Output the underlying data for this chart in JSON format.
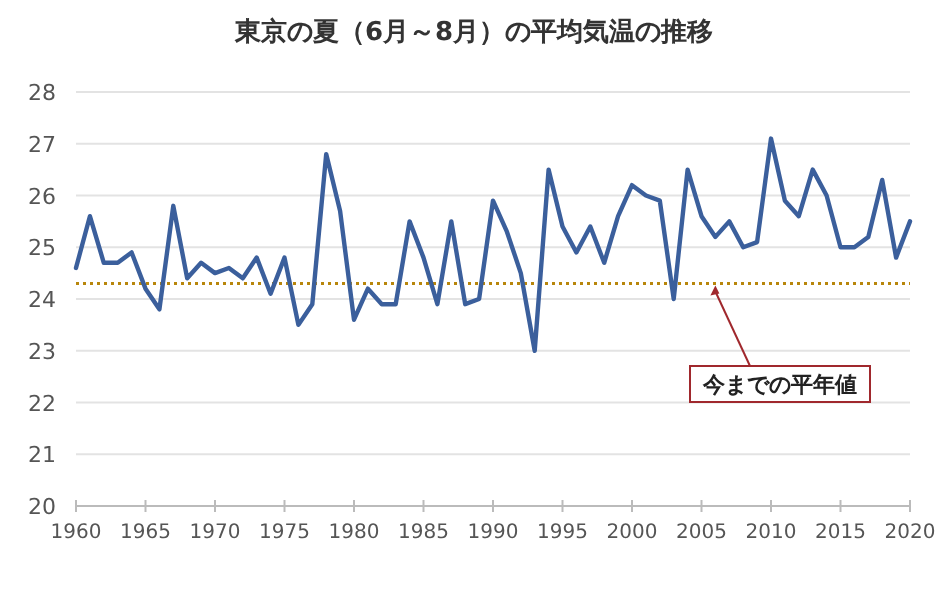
{
  "chart_data": {
    "type": "line",
    "title": "東京の夏（6月～8月）の平均気温の推移",
    "x": [
      1960,
      1961,
      1962,
      1963,
      1964,
      1965,
      1966,
      1967,
      1968,
      1969,
      1970,
      1971,
      1972,
      1973,
      1974,
      1975,
      1976,
      1977,
      1978,
      1979,
      1980,
      1981,
      1982,
      1983,
      1984,
      1985,
      1986,
      1987,
      1988,
      1989,
      1990,
      1991,
      1992,
      1993,
      1994,
      1995,
      1996,
      1997,
      1998,
      1999,
      2000,
      2001,
      2002,
      2003,
      2004,
      2005,
      2006,
      2007,
      2008,
      2009,
      2010,
      2011,
      2012,
      2013,
      2014,
      2015,
      2016,
      2017,
      2018,
      2019,
      2020
    ],
    "series": [
      {
        "color": "#3b5f9c",
        "values": [
          24.6,
          25.6,
          24.7,
          24.7,
          24.9,
          24.2,
          23.8,
          25.8,
          24.4,
          24.7,
          24.5,
          24.6,
          24.4,
          24.8,
          24.1,
          24.8,
          23.5,
          23.9,
          26.8,
          25.7,
          23.6,
          24.2,
          23.9,
          23.9,
          25.5,
          24.8,
          23.9,
          25.5,
          23.9,
          24.0,
          25.9,
          25.3,
          24.5,
          23.0,
          26.5,
          25.4,
          24.9,
          25.4,
          24.7,
          25.6,
          26.2,
          26.0,
          25.9,
          24.0,
          26.5,
          25.6,
          25.2,
          25.5,
          25.0,
          25.1,
          27.1,
          25.9,
          25.6,
          26.5,
          26.0,
          25.0,
          25.0,
          25.2,
          26.3,
          24.8,
          25.5
        ]
      }
    ],
    "xlim": [
      1960,
      2020
    ],
    "xticks": [
      1960,
      1965,
      1970,
      1975,
      1980,
      1985,
      1990,
      1995,
      2000,
      2005,
      2010,
      2015,
      2020
    ],
    "ylim": [
      20,
      28
    ],
    "yticks": [
      20,
      21,
      22,
      23,
      24,
      25,
      26,
      27,
      28
    ],
    "grid": "y",
    "marker": "none",
    "line_style": "solid",
    "ref_lines": [
      {
        "axis": "y",
        "value": 24.3,
        "color": "#b8860b",
        "line_style": "dotted"
      }
    ],
    "annotations": [
      {
        "text": "今までの平年値",
        "x": 2006,
        "y": 24.3
      }
    ]
  }
}
